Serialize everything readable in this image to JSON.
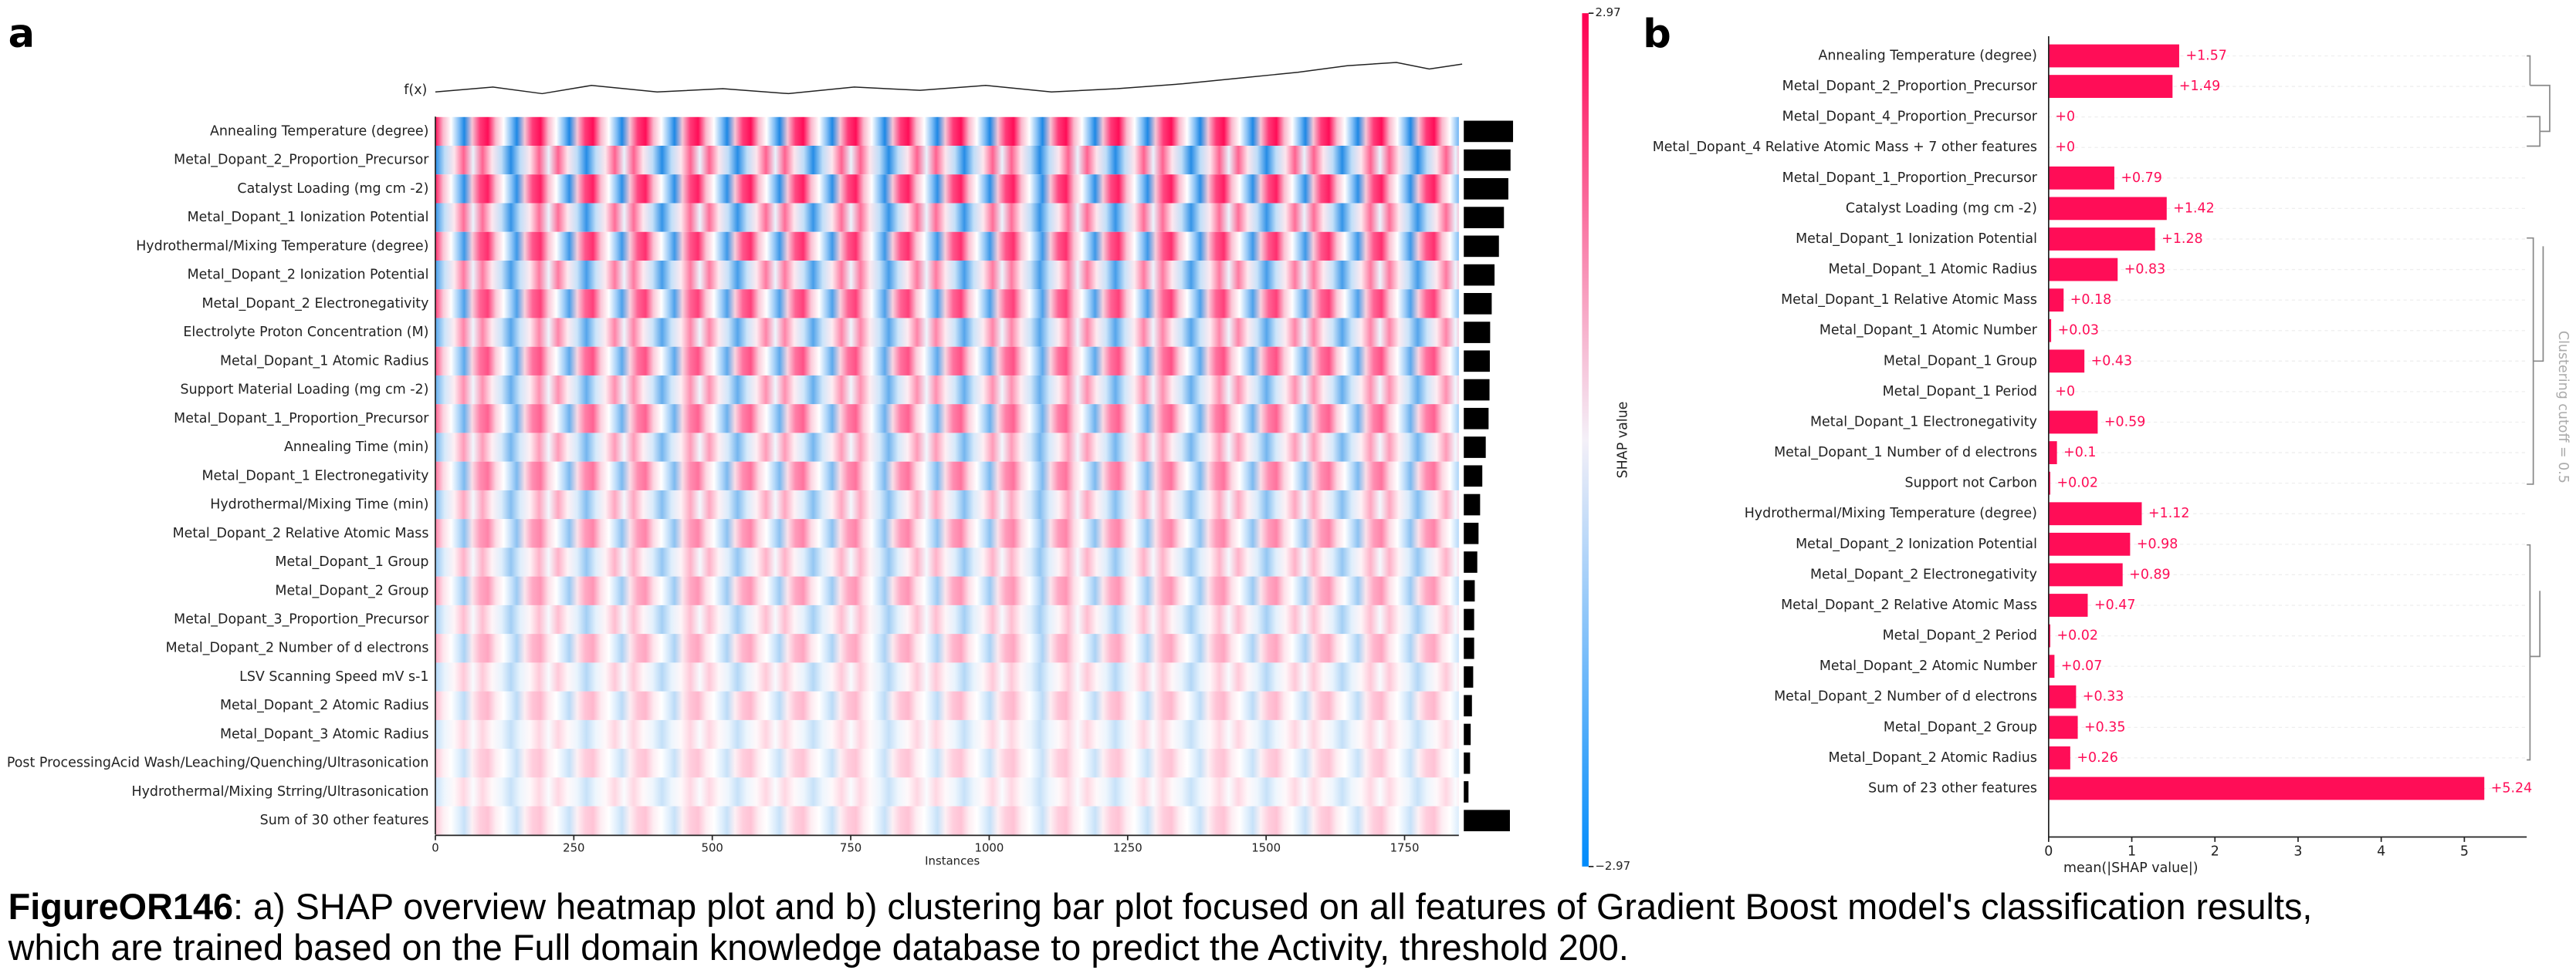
{
  "chart_data": [
    {
      "type": "heatmap",
      "panel_label": "a",
      "fx_label": "f(x)",
      "categories": [
        "Annealing Temperature (degree)",
        "Metal_Dopant_2_Proportion_Precursor",
        "Catalyst Loading (mg cm -2)",
        "Metal_Dopant_1 Ionization Potential",
        "Hydrothermal/Mixing Temperature (degree)",
        "Metal_Dopant_2 Ionization Potential",
        "Metal_Dopant_2 Electronegativity",
        "Electrolyte Proton Concentration (M)",
        "Metal_Dopant_1 Atomic Radius",
        "Support Material Loading (mg cm -2)",
        "Metal_Dopant_1_Proportion_Precursor",
        "Annealing Time (min)",
        "Metal_Dopant_1 Electronegativity",
        "Hydrothermal/Mixing Time (min)",
        "Metal_Dopant_2 Relative Atomic Mass",
        "Metal_Dopant_1 Group",
        "Metal_Dopant_2 Group",
        "Metal_Dopant_3_Proportion_Precursor",
        "Metal_Dopant_2 Number of d electrons",
        "LSV Scanning Speed mV s-1",
        "Metal_Dopant_2 Atomic Radius",
        "Metal_Dopant_3 Atomic Radius",
        "Post ProcessingAcid Wash/Leaching/Quenching/Ultrasonication",
        "Hydrothermal/Mixing Strring/Ultrasonication",
        "Sum of 30 other features"
      ],
      "importance": [
        1.57,
        1.49,
        1.42,
        1.28,
        1.12,
        0.98,
        0.89,
        0.84,
        0.83,
        0.82,
        0.79,
        0.7,
        0.59,
        0.52,
        0.47,
        0.43,
        0.35,
        0.33,
        0.33,
        0.3,
        0.26,
        0.22,
        0.2,
        0.15,
        1.47
      ],
      "importance_color": "#000000",
      "xlabel": "Instances",
      "xlim": [
        0,
        1848
      ],
      "xticks": [
        0,
        250,
        500,
        750,
        1000,
        1250,
        1500,
        1750
      ],
      "colorbar": {
        "label": "SHAP value",
        "lim": [
          -2.97,
          2.97
        ],
        "ticks": [
          2.97,
          {
            "value": -2.97,
            "label": "−2.97"
          }
        ]
      }
    },
    {
      "type": "bar",
      "panel_label": "b",
      "categories": [
        "Annealing Temperature (degree)",
        "Metal_Dopant_2_Proportion_Precursor",
        "Metal_Dopant_4_Proportion_Precursor",
        "Metal_Dopant_4 Relative Atomic Mass + 7 other features",
        "Metal_Dopant_1_Proportion_Precursor",
        "Catalyst Loading (mg cm -2)",
        "Metal_Dopant_1 Ionization Potential",
        "Metal_Dopant_1 Atomic Radius",
        "Metal_Dopant_1 Relative Atomic Mass",
        "Metal_Dopant_1 Atomic Number",
        "Metal_Dopant_1 Group",
        "Metal_Dopant_1 Period",
        "Metal_Dopant_1 Electronegativity",
        "Metal_Dopant_1 Number of d electrons",
        "Support not Carbon",
        "Hydrothermal/Mixing Temperature (degree)",
        "Metal_Dopant_2 Ionization Potential",
        "Metal_Dopant_2 Electronegativity",
        "Metal_Dopant_2 Relative Atomic Mass",
        "Metal_Dopant_2 Period",
        "Metal_Dopant_2 Atomic Number",
        "Metal_Dopant_2 Number of d electrons",
        "Metal_Dopant_2 Group",
        "Metal_Dopant_2 Atomic Radius",
        "Sum of 23 other features"
      ],
      "values": [
        1.57,
        1.49,
        0,
        0,
        0.79,
        1.42,
        1.28,
        0.83,
        0.18,
        0.03,
        0.43,
        0,
        0.59,
        0.1,
        0.02,
        1.12,
        0.98,
        0.89,
        0.47,
        0.02,
        0.07,
        0.33,
        0.35,
        0.26,
        5.24
      ],
      "value_labels": [
        "+1.57",
        "+1.49",
        "+0",
        "+0",
        "+0.79",
        "+1.42",
        "+1.28",
        "+0.83",
        "+0.18",
        "+0.03",
        "+0.43",
        "+0",
        "+0.59",
        "+0.1",
        "+0.02",
        "+1.12",
        "+0.98",
        "+0.89",
        "+0.47",
        "+0.02",
        "+0.07",
        "+0.33",
        "+0.35",
        "+0.26",
        "+5.24"
      ],
      "color": "#ff0d57",
      "xlabel": "mean(|SHAP value|)",
      "xlim": [
        0,
        5.75
      ],
      "xticks": [
        0,
        1,
        2,
        3,
        4,
        5
      ],
      "annotation": "Clustering cutoff = 0.5"
    }
  ],
  "caption": {
    "figure_id": "FigureOR146",
    "line1": ": a) SHAP overview heatmap plot and b) clustering bar plot focused on all features of Gradient Boost model's classification results,",
    "line2": "which are trained based on the Full domain knowledge database to predict the Activity, threshold 200."
  }
}
